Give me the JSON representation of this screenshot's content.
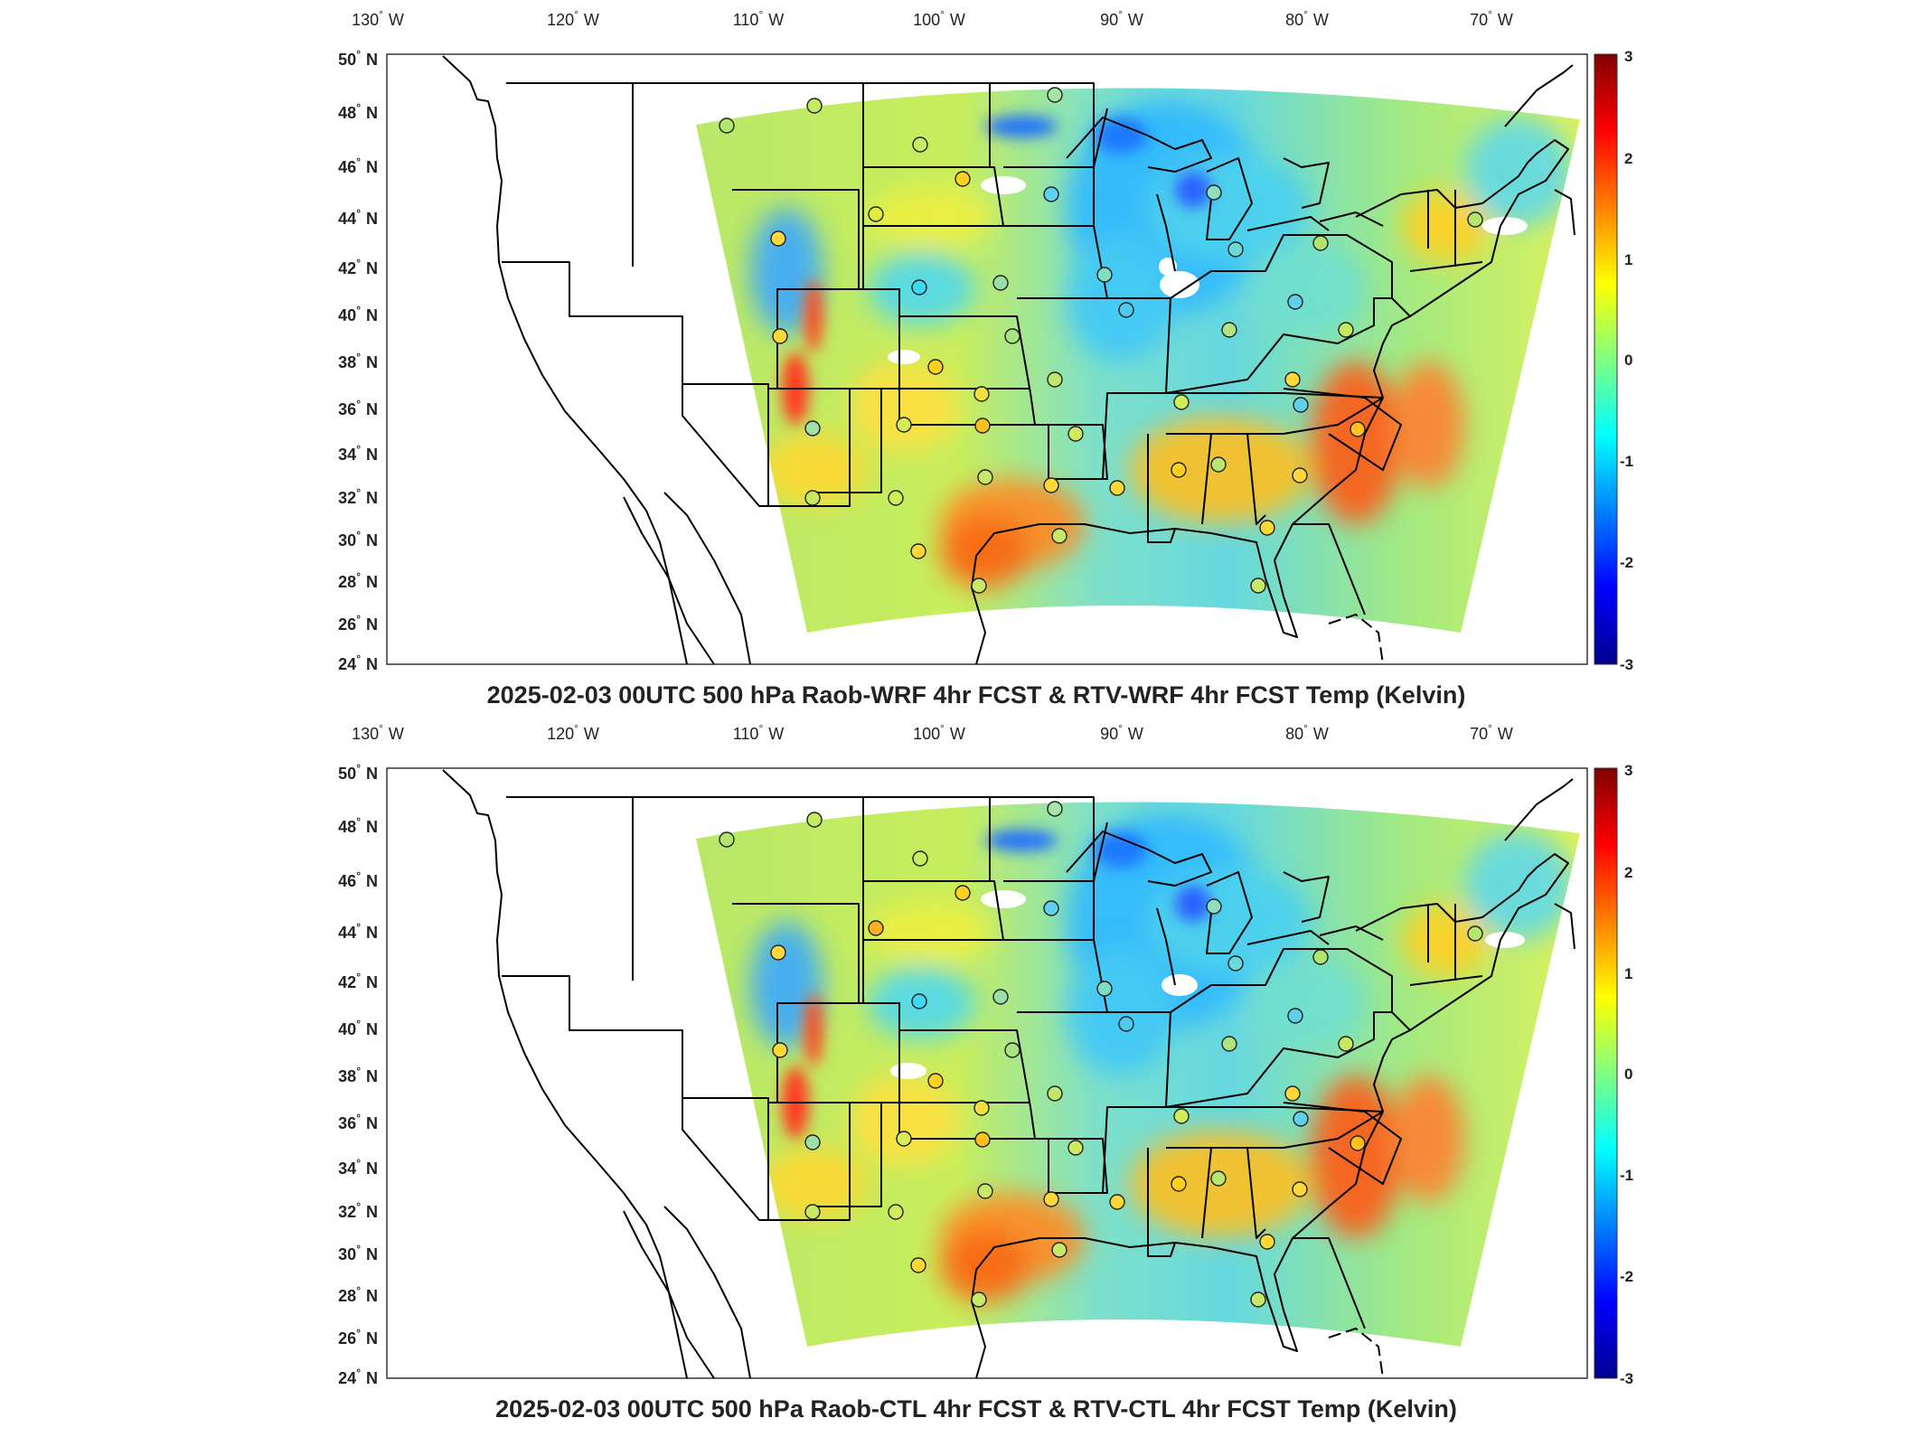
{
  "colorbar": {
    "ticks": [
      "3",
      "2",
      "1",
      "0",
      "-1",
      "-2",
      "-3"
    ]
  },
  "lon_labels": [
    "130",
    "120",
    "110",
    "100",
    "90",
    "80",
    "70"
  ],
  "lon_suffix": "W",
  "lat_labels": [
    "50",
    "48",
    "46",
    "44",
    "42",
    "40",
    "38",
    "36",
    "34",
    "32",
    "30",
    "28",
    "26",
    "24"
  ],
  "lat_suffix": "N",
  "degree_symbol": "°",
  "panels": [
    {
      "id": "wrf",
      "title": "2025-02-03 00UTC 500 hPa Raob-WRF 4hr FCST & RTV-WRF 4hr FCST Temp (Kelvin)"
    },
    {
      "id": "ctl",
      "title": "2025-02-03 00UTC 500 hPa Raob-CTL 4hr FCST & RTV-CTL 4hr FCST Temp (Kelvin)"
    }
  ]
}
